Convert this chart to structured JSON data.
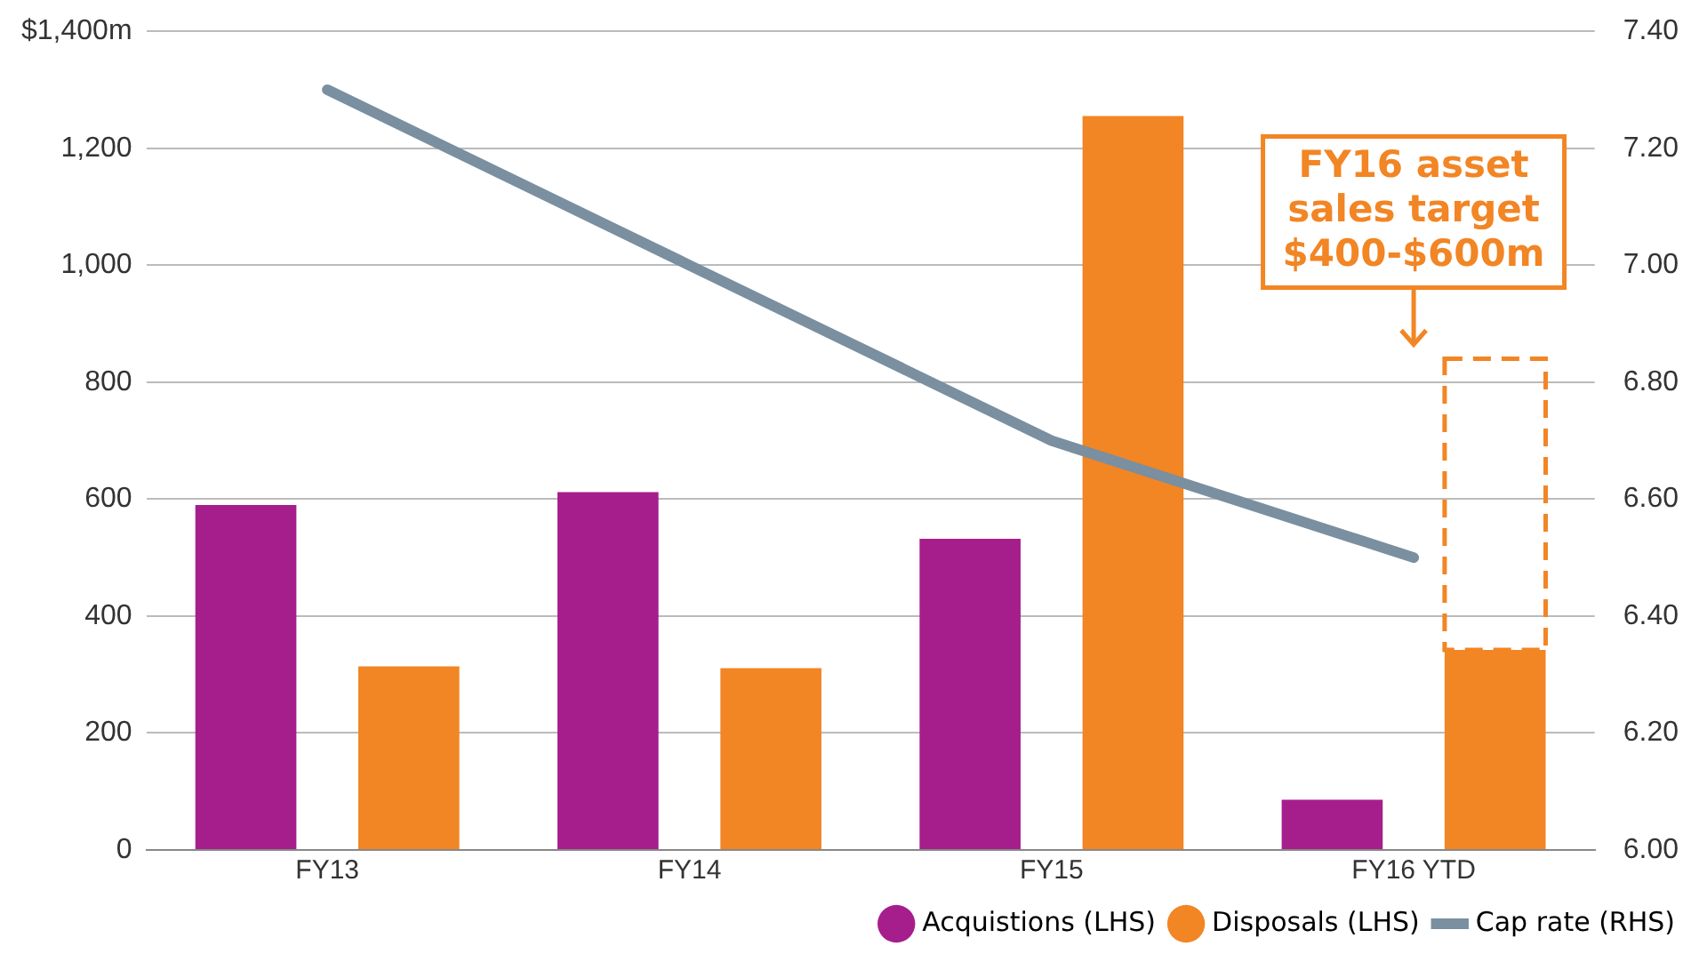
{
  "chart_data": {
    "type": "bar",
    "categories": [
      "FY13",
      "FY14",
      "FY15",
      "FY16 YTD"
    ],
    "series": [
      {
        "name": "Acquistions (LHS)",
        "color": "#a61e8c",
        "values": [
          590,
          612,
          532,
          86
        ]
      },
      {
        "name": "Disposals (LHS)",
        "color": "#f28524",
        "values": [
          314,
          311,
          1255,
          342
        ]
      },
      {
        "name": "Cap rate (RHS)",
        "type": "line",
        "axis": "y2",
        "color": "#7a8fa0",
        "values": [
          7.3,
          7.0,
          6.7,
          6.5
        ]
      }
    ],
    "ylim": [
      0,
      1400
    ],
    "yticks": [
      0,
      200,
      400,
      600,
      800,
      {
        "value": 1000,
        "label": "1,000"
      },
      {
        "value": 1200,
        "label": "1,200"
      },
      {
        "value": 1400,
        "label": "$1,400m"
      }
    ],
    "y2lim": [
      6.0,
      7.4
    ],
    "y2ticks": [
      {
        "value": 6.0,
        "label": "6.00"
      },
      {
        "value": 6.2,
        "label": "6.20"
      },
      {
        "value": 6.4,
        "label": "6.40"
      },
      {
        "value": 6.6,
        "label": "6.60"
      },
      {
        "value": 6.8,
        "label": "6.80"
      },
      {
        "value": 7.0,
        "label": "7.00"
      },
      {
        "value": 7.2,
        "label": "7.20"
      },
      {
        "value": 7.4,
        "label": "7.40"
      }
    ],
    "annotations": [
      "FY16 asset\nsales target\n$400-$600m"
    ],
    "grid": "y",
    "legend": "bottom right",
    "marker": "none",
    "line_style": "solid"
  }
}
